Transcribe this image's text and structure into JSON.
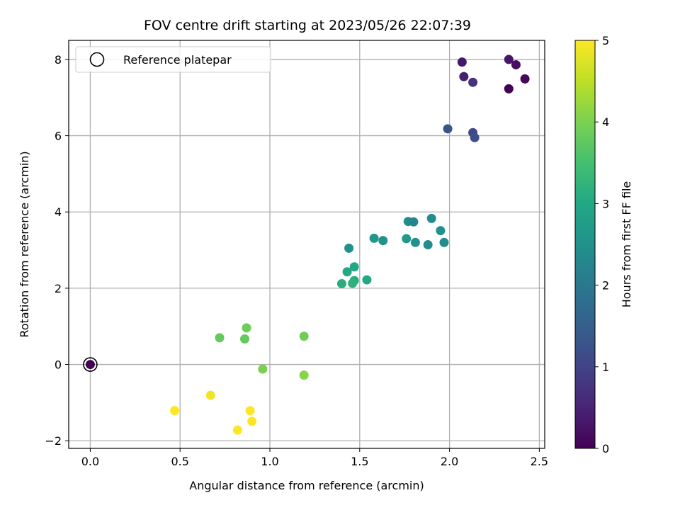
{
  "chart_data": {
    "type": "scatter",
    "title": "FOV centre drift starting at 2023/05/26 22:07:39",
    "xlabel": "Angular distance from reference (arcmin)",
    "ylabel": "Rotation from reference (arcmin)",
    "xlim": [
      -0.12,
      2.53
    ],
    "ylim": [
      -2.2,
      8.5
    ],
    "xticks": [
      0.0,
      0.5,
      1.0,
      1.5,
      2.0,
      2.5
    ],
    "xtick_labels": [
      "0.0",
      "0.5",
      "1.0",
      "1.5",
      "2.0",
      "2.5"
    ],
    "yticks": [
      -2,
      0,
      2,
      4,
      6,
      8
    ],
    "ytick_labels": [
      "−2",
      "0",
      "2",
      "4",
      "6",
      "8"
    ],
    "grid": true,
    "legend": {
      "position": "upper-left",
      "entries": [
        "Reference platepar"
      ]
    },
    "reference_point": {
      "x": 0.0,
      "y": 0.0,
      "hours": 0.0
    },
    "colorbar": {
      "label": "Hours from first FF file",
      "range": [
        0,
        5
      ],
      "ticks": [
        0,
        1,
        2,
        3,
        4,
        5
      ],
      "tick_labels": [
        "0",
        "1",
        "2",
        "3",
        "4",
        "5"
      ],
      "colormap": "viridis"
    },
    "points": [
      {
        "x": 2.07,
        "y": 7.93,
        "hours": 0.3
      },
      {
        "x": 2.08,
        "y": 7.55,
        "hours": 0.4
      },
      {
        "x": 2.13,
        "y": 7.4,
        "hours": 0.7
      },
      {
        "x": 2.33,
        "y": 8.0,
        "hours": 0.3
      },
      {
        "x": 2.37,
        "y": 7.86,
        "hours": 0.2
      },
      {
        "x": 2.42,
        "y": 7.49,
        "hours": 0.1
      },
      {
        "x": 2.33,
        "y": 7.23,
        "hours": 0.0
      },
      {
        "x": 1.99,
        "y": 6.18,
        "hours": 1.3
      },
      {
        "x": 2.13,
        "y": 6.08,
        "hours": 1.1
      },
      {
        "x": 2.14,
        "y": 5.95,
        "hours": 1.2
      },
      {
        "x": 1.9,
        "y": 3.83,
        "hours": 2.4
      },
      {
        "x": 1.77,
        "y": 3.75,
        "hours": 2.4
      },
      {
        "x": 1.8,
        "y": 3.74,
        "hours": 2.3
      },
      {
        "x": 1.95,
        "y": 3.51,
        "hours": 2.5
      },
      {
        "x": 1.58,
        "y": 3.31,
        "hours": 2.6
      },
      {
        "x": 1.76,
        "y": 3.3,
        "hours": 2.7
      },
      {
        "x": 1.63,
        "y": 3.25,
        "hours": 2.5
      },
      {
        "x": 1.81,
        "y": 3.2,
        "hours": 2.5
      },
      {
        "x": 1.97,
        "y": 3.2,
        "hours": 2.4
      },
      {
        "x": 1.88,
        "y": 3.14,
        "hours": 2.4
      },
      {
        "x": 1.44,
        "y": 3.05,
        "hours": 2.5
      },
      {
        "x": 1.47,
        "y": 2.56,
        "hours": 3.0
      },
      {
        "x": 1.43,
        "y": 2.43,
        "hours": 3.0
      },
      {
        "x": 1.54,
        "y": 2.22,
        "hours": 3.0
      },
      {
        "x": 1.47,
        "y": 2.2,
        "hours": 3.1
      },
      {
        "x": 1.46,
        "y": 2.13,
        "hours": 3.2
      },
      {
        "x": 1.4,
        "y": 2.12,
        "hours": 3.1
      },
      {
        "x": 0.87,
        "y": 0.96,
        "hours": 3.9
      },
      {
        "x": 1.19,
        "y": 0.74,
        "hours": 3.9
      },
      {
        "x": 0.72,
        "y": 0.7,
        "hours": 3.8
      },
      {
        "x": 0.86,
        "y": 0.67,
        "hours": 3.8
      },
      {
        "x": 0.96,
        "y": -0.12,
        "hours": 4.0
      },
      {
        "x": 1.19,
        "y": -0.28,
        "hours": 4.1
      },
      {
        "x": 0.67,
        "y": -0.81,
        "hours": 4.9
      },
      {
        "x": 0.47,
        "y": -1.21,
        "hours": 5.0
      },
      {
        "x": 0.89,
        "y": -1.21,
        "hours": 5.0
      },
      {
        "x": 0.9,
        "y": -1.49,
        "hours": 5.0
      },
      {
        "x": 0.82,
        "y": -1.72,
        "hours": 5.0
      }
    ]
  }
}
